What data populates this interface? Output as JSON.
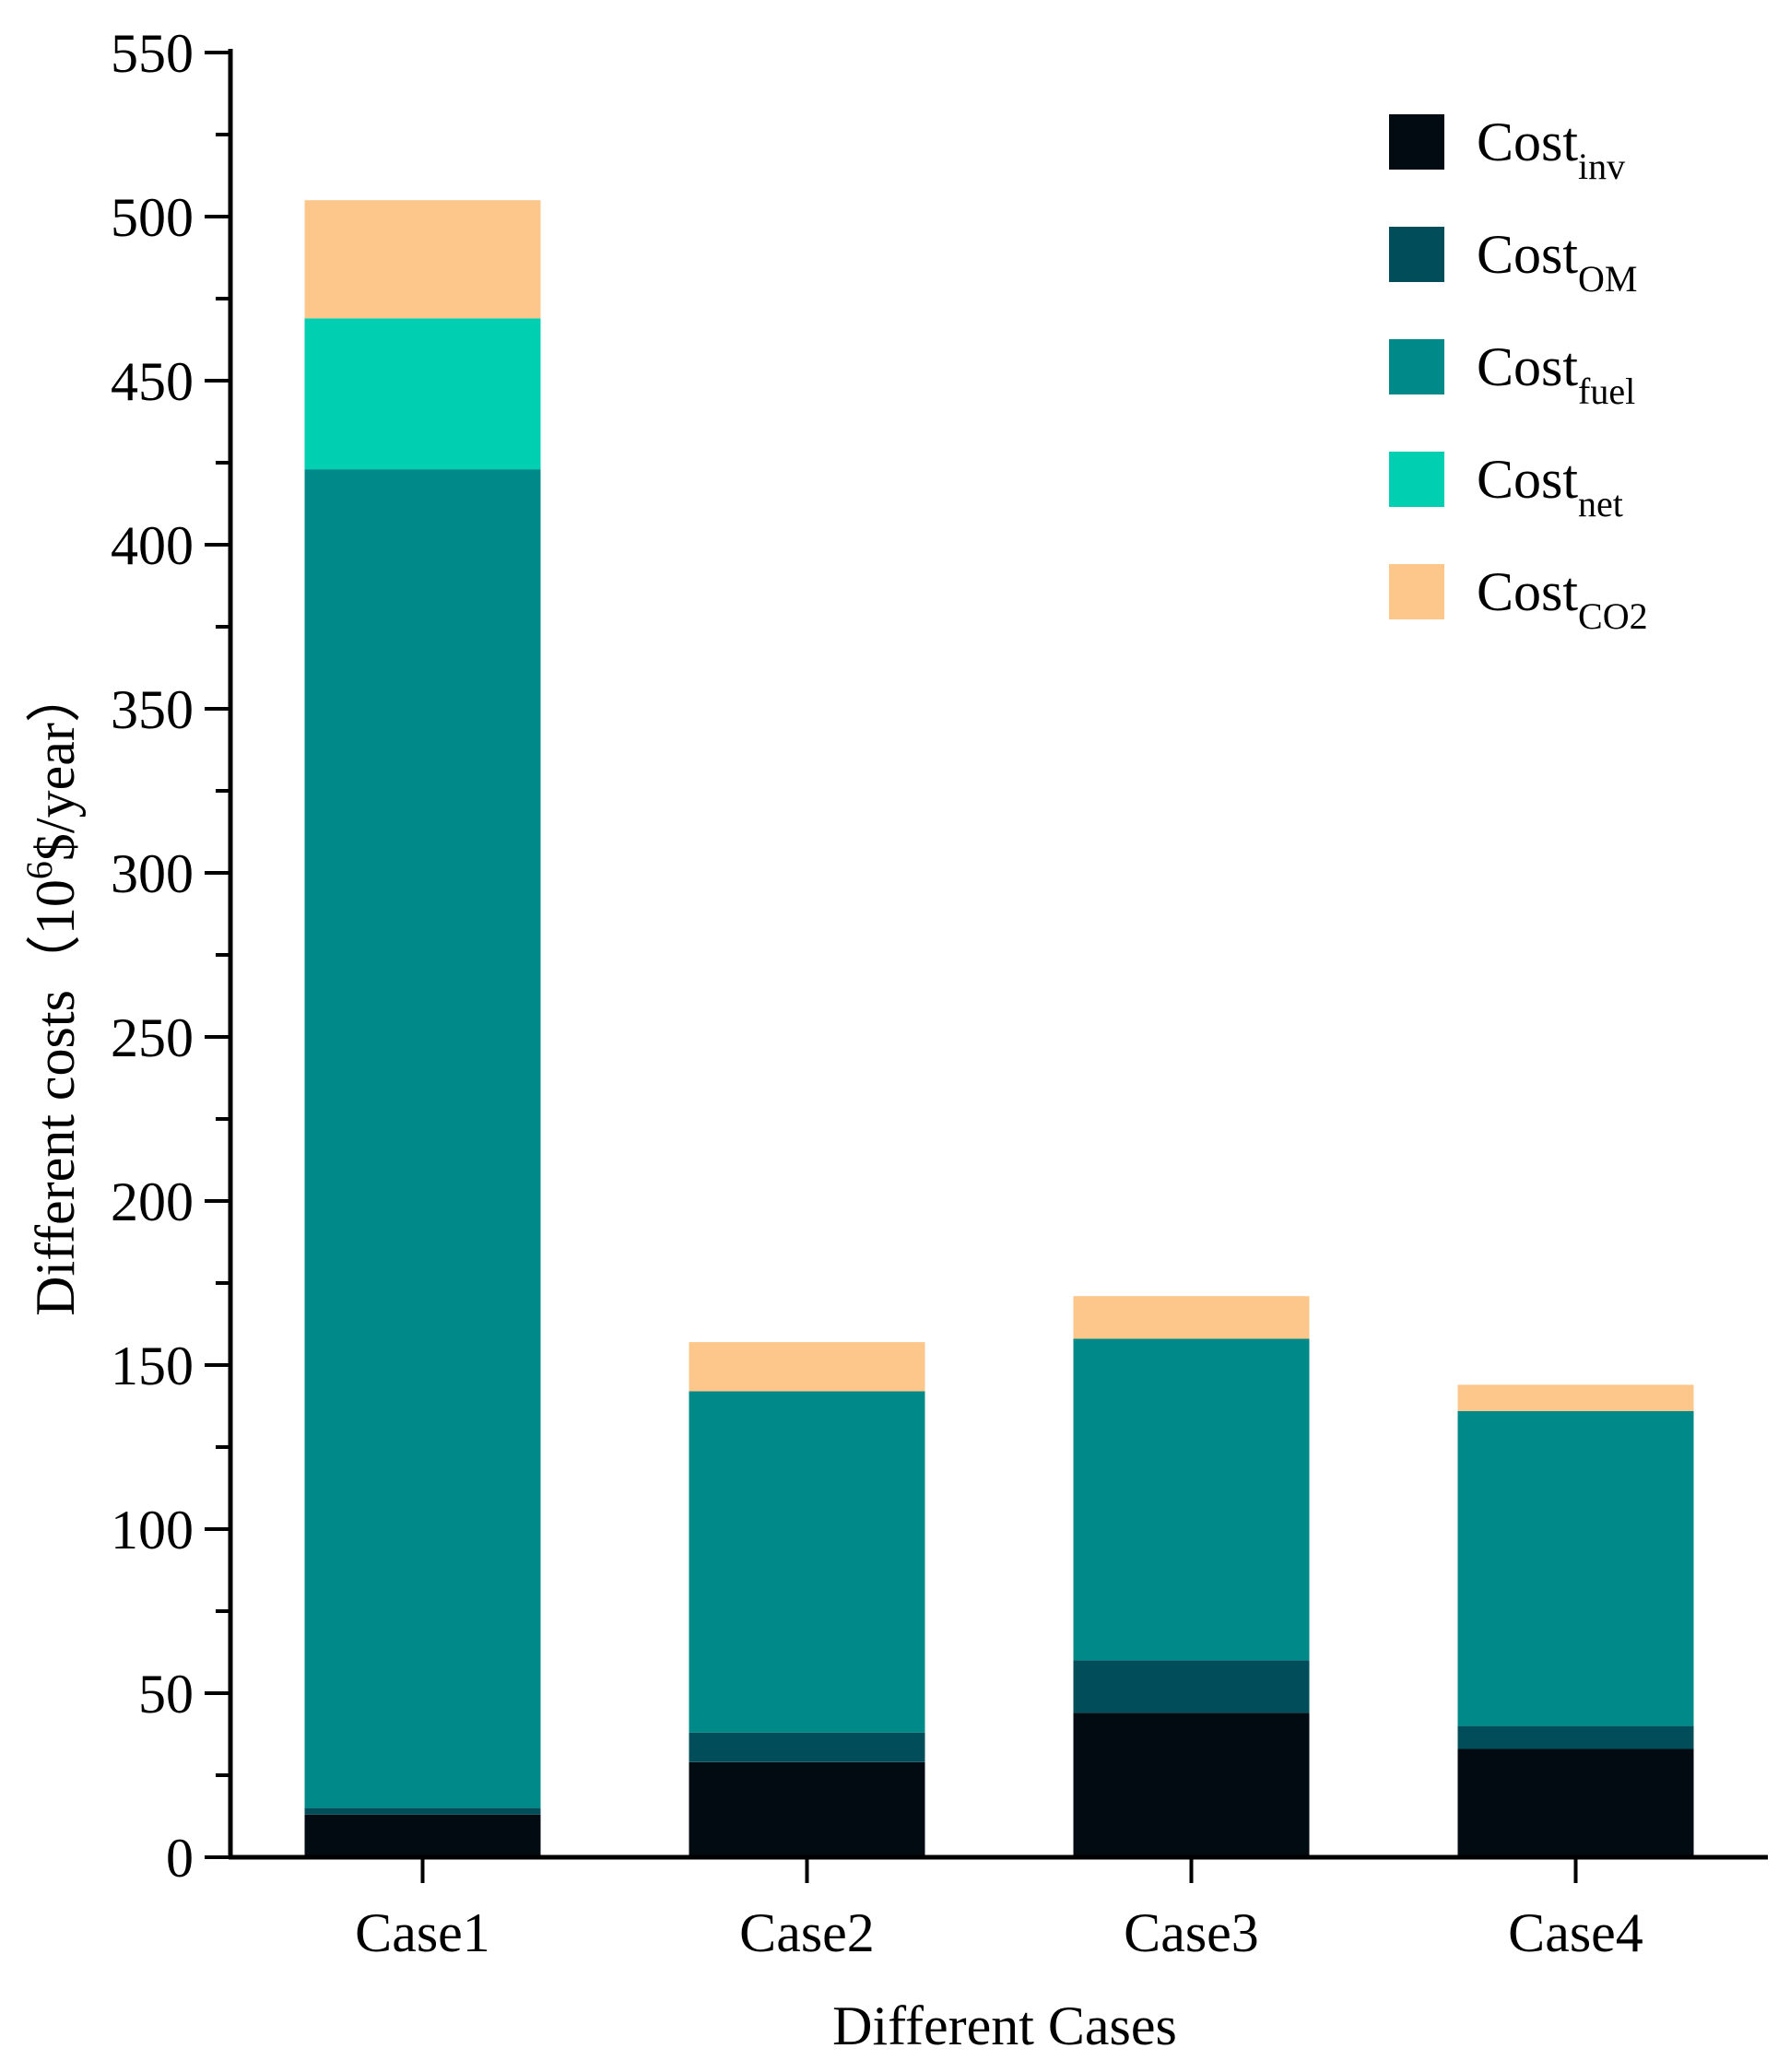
{
  "chart_data": {
    "type": "bar",
    "stacked": true,
    "title": "",
    "xlabel": "Different Cases",
    "ylabel": "Different costs（10",
    "ylabel_sup": "6",
    "ylabel_tail": "$/year）",
    "ylim": [
      0,
      550
    ],
    "ytick_step": 50,
    "yminor_step": 25,
    "categories": [
      "Case1",
      "Case2",
      "Case3",
      "Case4"
    ],
    "series": [
      {
        "name": "Cost",
        "sub": "inv",
        "color": "#020a12",
        "values": [
          13,
          29,
          44,
          33
        ]
      },
      {
        "name": "Cost",
        "sub": "OM",
        "color": "#024d5a",
        "values": [
          2,
          9,
          16,
          7
        ]
      },
      {
        "name": "Cost",
        "sub": "fuel",
        "color": "#008989",
        "values": [
          408,
          104,
          98,
          96
        ]
      },
      {
        "name": "Cost",
        "sub": "net",
        "color": "#00cfb2",
        "values": [
          46,
          0,
          0,
          0
        ]
      },
      {
        "name": "Cost",
        "sub": "CO2",
        "color": "#fdc78c",
        "values": [
          36,
          15,
          13,
          8
        ]
      }
    ],
    "legend_position": "top-right",
    "grid": false
  }
}
